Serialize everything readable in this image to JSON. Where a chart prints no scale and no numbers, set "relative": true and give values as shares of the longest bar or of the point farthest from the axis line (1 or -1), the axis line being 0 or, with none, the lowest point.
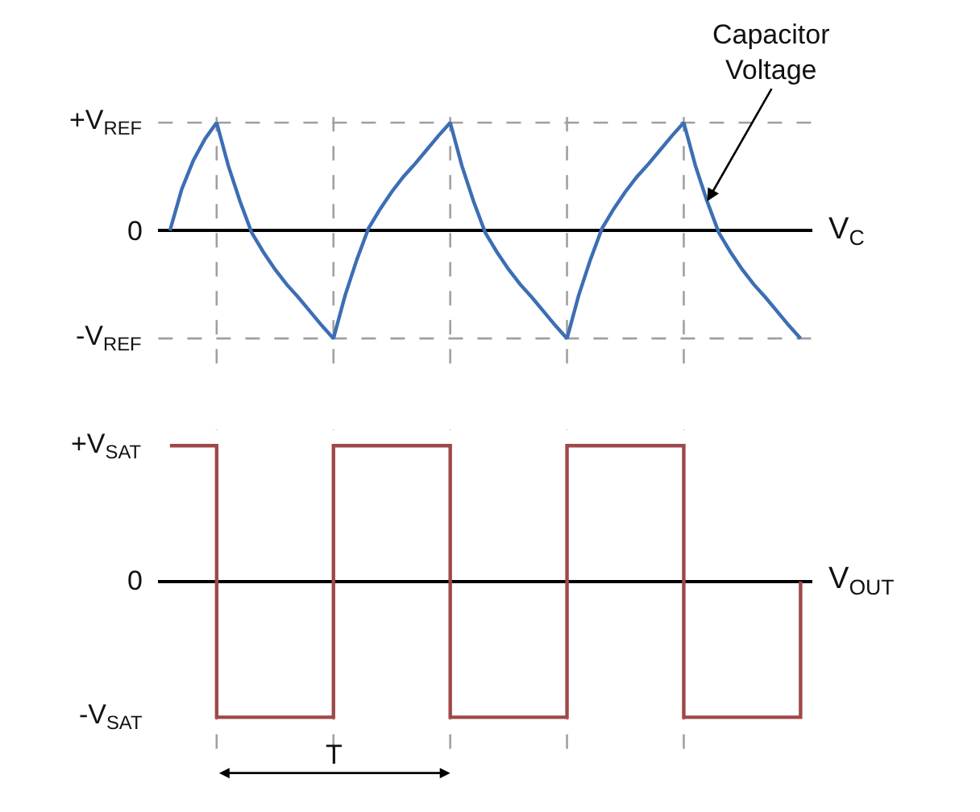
{
  "chart_data": [
    {
      "type": "line",
      "relative": true,
      "ylabel": "V$_{C}$",
      "grid": true,
      "marker": "none",
      "line_style": "solid",
      "categories": [
        null,
        null,
        null,
        null,
        null,
        null,
        null,
        null,
        null,
        null,
        null,
        null,
        null,
        null,
        null,
        null,
        null,
        null,
        null,
        null,
        null,
        null,
        null,
        null,
        null,
        null,
        null,
        null,
        null,
        null,
        null,
        null,
        null,
        null,
        null,
        null,
        null,
        null,
        null,
        null,
        null,
        null,
        null,
        null,
        null,
        null,
        null,
        null,
        null,
        null,
        null,
        null,
        null,
        null,
        null
      ],
      "series": [
        {
          "color": "#3c6eb4",
          "values": [
            0,
            0.38,
            0.65,
            0.85,
            1,
            0.6,
            0.27,
            -0.02,
            -0.2,
            -0.36,
            -0.5,
            -0.62,
            -0.75,
            -0.88,
            -1,
            -0.6,
            -0.27,
            0.02,
            0.2,
            0.36,
            0.5,
            0.62,
            0.75,
            0.88,
            1,
            0.6,
            0.27,
            -0.02,
            -0.2,
            -0.36,
            -0.5,
            -0.62,
            -0.75,
            -0.88,
            -1,
            -0.6,
            -0.27,
            0.02,
            0.2,
            0.36,
            0.5,
            0.62,
            0.75,
            0.88,
            1,
            0.6,
            0.27,
            -0.02,
            -0.2,
            -0.36,
            -0.5,
            -0.62,
            -0.75,
            -0.88,
            -1
          ]
        }
      ],
      "annotations": [
        "+V$_{REF}$",
        "0",
        "-V$_{REF}$",
        "Capacitor\nVoltage"
      ]
    },
    {
      "type": "step",
      "relative": true,
      "ylabel": "V$_{OUT}$",
      "grid": "x",
      "marker": "none",
      "line_style": "solid",
      "categories": [
        null,
        null,
        null,
        null,
        null,
        null,
        null,
        null,
        null,
        null,
        null,
        null,
        null,
        null,
        null,
        null,
        null,
        null,
        null,
        null,
        null,
        null,
        null,
        null,
        null,
        null,
        null,
        null,
        null,
        null,
        null,
        null,
        null,
        null,
        null,
        null,
        null,
        null,
        null,
        null,
        null,
        null,
        null,
        null,
        null,
        null,
        null,
        null,
        null,
        null,
        null,
        null,
        null,
        null,
        null
      ],
      "series": [
        {
          "color": "#a04848",
          "values": [
            1,
            1,
            1,
            1,
            -1,
            -1,
            -1,
            -1,
            -1,
            -1,
            -1,
            -1,
            -1,
            -1,
            1,
            1,
            1,
            1,
            1,
            1,
            1,
            1,
            1,
            1,
            -1,
            -1,
            -1,
            -1,
            -1,
            -1,
            -1,
            -1,
            -1,
            -1,
            1,
            1,
            1,
            1,
            1,
            1,
            1,
            1,
            1,
            1,
            -1,
            -1,
            -1,
            -1,
            -1,
            -1,
            -1,
            -1,
            -1,
            -1,
            0
          ]
        }
      ],
      "annotations": [
        "+V$_{SAT}$",
        "0",
        "-V$_{SAT}$",
        "T"
      ]
    }
  ]
}
